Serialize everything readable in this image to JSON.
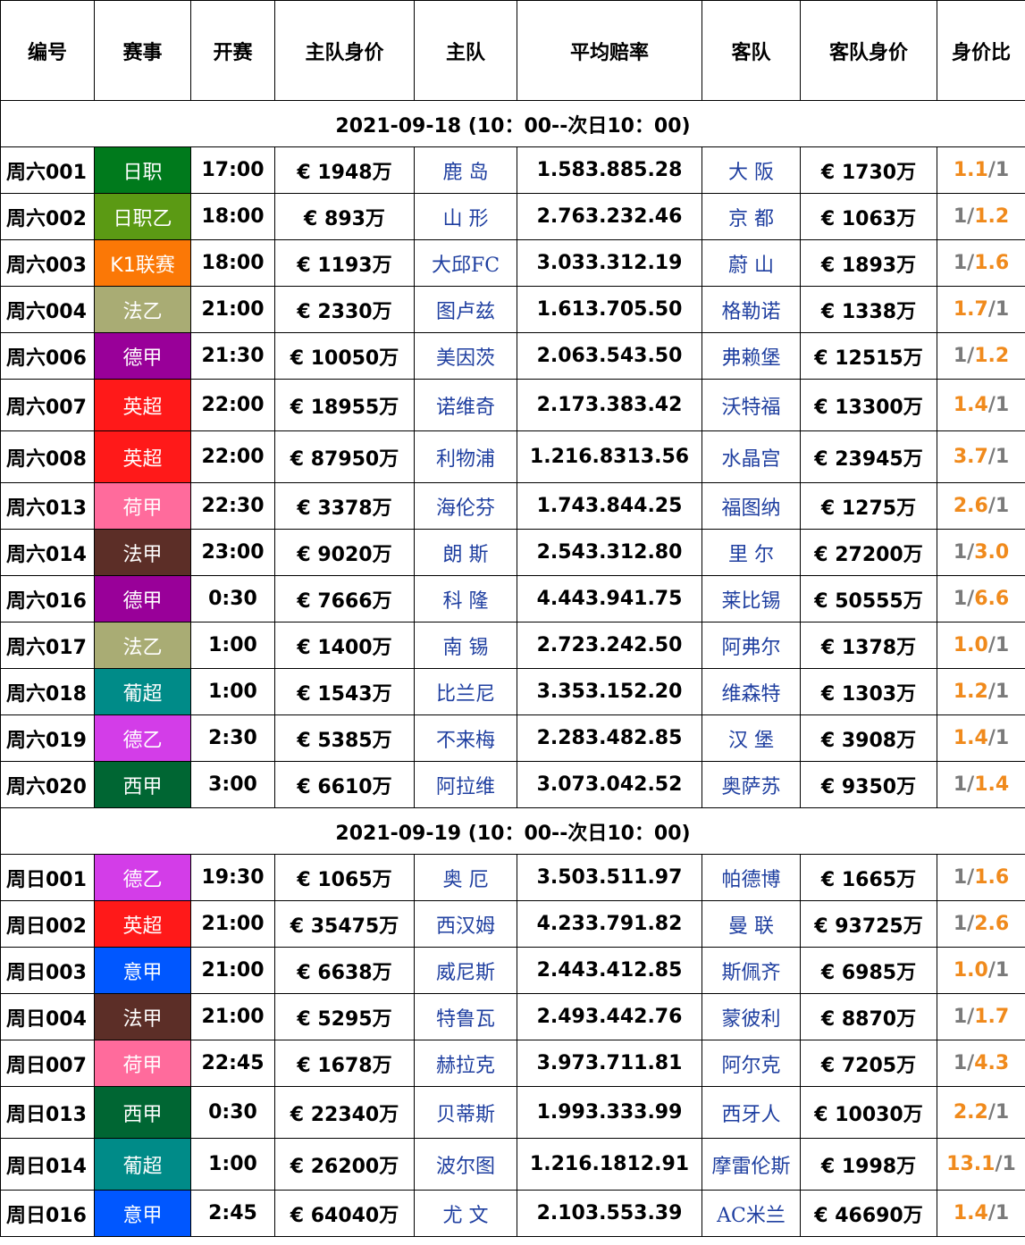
{
  "columns": [
    "编号",
    "赛事",
    "开赛",
    "主队身价",
    "主队",
    "平均赔率",
    "客队",
    "客队身价",
    "身价比"
  ],
  "league_colors": {
    "日职": "#007a1c",
    "日职乙": "#5b9a14",
    "K1联赛": "#fb7806",
    "法乙": "#a9ac74",
    "德甲": "#990099",
    "英超": "#ff1919",
    "荷甲": "#ff6b9c",
    "法甲": "#5c2e27",
    "葡超": "#008b88",
    "德乙": "#d33de8",
    "西甲": "#006633",
    "意甲": "#0057ff"
  },
  "groups": [
    {
      "date": "2021-09-18 (10：00--次日10：00)",
      "matches": [
        {
          "id": "周六001",
          "league": "日职",
          "time": "17:00",
          "home_value": "€ 1948万",
          "home": "鹿 岛",
          "odds": "1.583.885.28",
          "away": "大 阪",
          "away_value": "€ 1730万",
          "ratio_left": "1.1",
          "ratio_right": "1",
          "highlight": "left"
        },
        {
          "id": "周六002",
          "league": "日职乙",
          "time": "18:00",
          "home_value": "€ 893万",
          "home": "山 形",
          "odds": "2.763.232.46",
          "away": "京 都",
          "away_value": "€ 1063万",
          "ratio_left": "1",
          "ratio_right": "1.2",
          "highlight": "right"
        },
        {
          "id": "周六003",
          "league": "K1联赛",
          "time": "18:00",
          "home_value": "€ 1193万",
          "home": "大邱FC",
          "odds": "3.033.312.19",
          "away": "蔚 山",
          "away_value": "€ 1893万",
          "ratio_left": "1",
          "ratio_right": "1.6",
          "highlight": "right"
        },
        {
          "id": "周六004",
          "league": "法乙",
          "time": "21:00",
          "home_value": "€ 2330万",
          "home": "图卢兹",
          "odds": "1.613.705.50",
          "away": "格勒诺",
          "away_value": "€ 1338万",
          "ratio_left": "1.7",
          "ratio_right": "1",
          "highlight": "left"
        },
        {
          "id": "周六006",
          "league": "德甲",
          "time": "21:30",
          "home_value": "€ 10050万",
          "home": "美因茨",
          "odds": "2.063.543.50",
          "away": "弗赖堡",
          "away_value": "€ 12515万",
          "ratio_left": "1",
          "ratio_right": "1.2",
          "highlight": "right"
        },
        {
          "id": "周六007",
          "league": "英超",
          "time": "22:00",
          "home_value": "€ 18955万",
          "home": "诺维奇",
          "odds": "2.173.383.42",
          "away": "沃特福",
          "away_value": "€ 13300万",
          "ratio_left": "1.4",
          "ratio_right": "1",
          "highlight": "left"
        },
        {
          "id": "周六008",
          "league": "英超",
          "time": "22:00",
          "home_value": "€ 87950万",
          "home": "利物浦",
          "odds": "1.216.8313.56",
          "away": "水晶宫",
          "away_value": "€ 23945万",
          "ratio_left": "3.7",
          "ratio_right": "1",
          "highlight": "left"
        },
        {
          "id": "周六013",
          "league": "荷甲",
          "time": "22:30",
          "home_value": "€ 3378万",
          "home": "海伦芬",
          "odds": "1.743.844.25",
          "away": "福图纳",
          "away_value": "€ 1275万",
          "ratio_left": "2.6",
          "ratio_right": "1",
          "highlight": "left"
        },
        {
          "id": "周六014",
          "league": "法甲",
          "time": "23:00",
          "home_value": "€ 9020万",
          "home": "朗 斯",
          "odds": "2.543.312.80",
          "away": "里 尔",
          "away_value": "€ 27200万",
          "ratio_left": "1",
          "ratio_right": "3.0",
          "highlight": "right"
        },
        {
          "id": "周六016",
          "league": "德甲",
          "time": "0:30",
          "home_value": "€ 7666万",
          "home": "科 隆",
          "odds": "4.443.941.75",
          "away": "莱比锡",
          "away_value": "€ 50555万",
          "ratio_left": "1",
          "ratio_right": "6.6",
          "highlight": "right"
        },
        {
          "id": "周六017",
          "league": "法乙",
          "time": "1:00",
          "home_value": "€ 1400万",
          "home": "南 锡",
          "odds": "2.723.242.50",
          "away": "阿弗尔",
          "away_value": "€ 1378万",
          "ratio_left": "1.0",
          "ratio_right": "1",
          "highlight": "left"
        },
        {
          "id": "周六018",
          "league": "葡超",
          "time": "1:00",
          "home_value": "€ 1543万",
          "home": "比兰尼",
          "odds": "3.353.152.20",
          "away": "维森特",
          "away_value": "€ 1303万",
          "ratio_left": "1.2",
          "ratio_right": "1",
          "highlight": "left"
        },
        {
          "id": "周六019",
          "league": "德乙",
          "time": "2:30",
          "home_value": "€ 5385万",
          "home": "不来梅",
          "odds": "2.283.482.85",
          "away": "汉 堡",
          "away_value": "€ 3908万",
          "ratio_left": "1.4",
          "ratio_right": "1",
          "highlight": "left"
        },
        {
          "id": "周六020",
          "league": "西甲",
          "time": "3:00",
          "home_value": "€ 6610万",
          "home": "阿拉维",
          "odds": "3.073.042.52",
          "away": "奥萨苏",
          "away_value": "€ 9350万",
          "ratio_left": "1",
          "ratio_right": "1.4",
          "highlight": "right"
        }
      ]
    },
    {
      "date": "2021-09-19 (10：00--次日10：00)",
      "matches": [
        {
          "id": "周日001",
          "league": "德乙",
          "time": "19:30",
          "home_value": "€ 1065万",
          "home": "奥 厄",
          "odds": "3.503.511.97",
          "away": "帕德博",
          "away_value": "€ 1665万",
          "ratio_left": "1",
          "ratio_right": "1.6",
          "highlight": "right"
        },
        {
          "id": "周日002",
          "league": "英超",
          "time": "21:00",
          "home_value": "€ 35475万",
          "home": "西汉姆",
          "odds": "4.233.791.82",
          "away": "曼 联",
          "away_value": "€ 93725万",
          "ratio_left": "1",
          "ratio_right": "2.6",
          "highlight": "right"
        },
        {
          "id": "周日003",
          "league": "意甲",
          "time": "21:00",
          "home_value": "€ 6638万",
          "home": "威尼斯",
          "odds": "2.443.412.85",
          "away": "斯佩齐",
          "away_value": "€ 6985万",
          "ratio_left": "1.0",
          "ratio_right": "1",
          "highlight": "left"
        },
        {
          "id": "周日004",
          "league": "法甲",
          "time": "21:00",
          "home_value": "€ 5295万",
          "home": "特鲁瓦",
          "odds": "2.493.442.76",
          "away": "蒙彼利",
          "away_value": "€ 8870万",
          "ratio_left": "1",
          "ratio_right": "1.7",
          "highlight": "right"
        },
        {
          "id": "周日007",
          "league": "荷甲",
          "time": "22:45",
          "home_value": "€ 1678万",
          "home": "赫拉克",
          "odds": "3.973.711.81",
          "away": "阿尔克",
          "away_value": "€ 7205万",
          "ratio_left": "1",
          "ratio_right": "4.3",
          "highlight": "right"
        },
        {
          "id": "周日013",
          "league": "西甲",
          "time": "0:30",
          "home_value": "€ 22340万",
          "home": "贝蒂斯",
          "odds": "1.993.333.99",
          "away": "西牙人",
          "away_value": "€ 10030万",
          "ratio_left": "2.2",
          "ratio_right": "1",
          "highlight": "left"
        },
        {
          "id": "周日014",
          "league": "葡超",
          "time": "1:00",
          "home_value": "€ 26200万",
          "home": "波尔图",
          "odds": "1.216.1812.91",
          "away": "摩雷伦斯",
          "away_value": "€ 1998万",
          "ratio_left": "13.1",
          "ratio_right": "1",
          "highlight": "left"
        },
        {
          "id": "周日016",
          "league": "意甲",
          "time": "2:45",
          "home_value": "€ 64040万",
          "home": "尤 文",
          "odds": "2.103.553.39",
          "away": "AC米兰",
          "away_value": "€ 46690万",
          "ratio_left": "1.4",
          "ratio_right": "1",
          "highlight": "left"
        }
      ]
    }
  ]
}
